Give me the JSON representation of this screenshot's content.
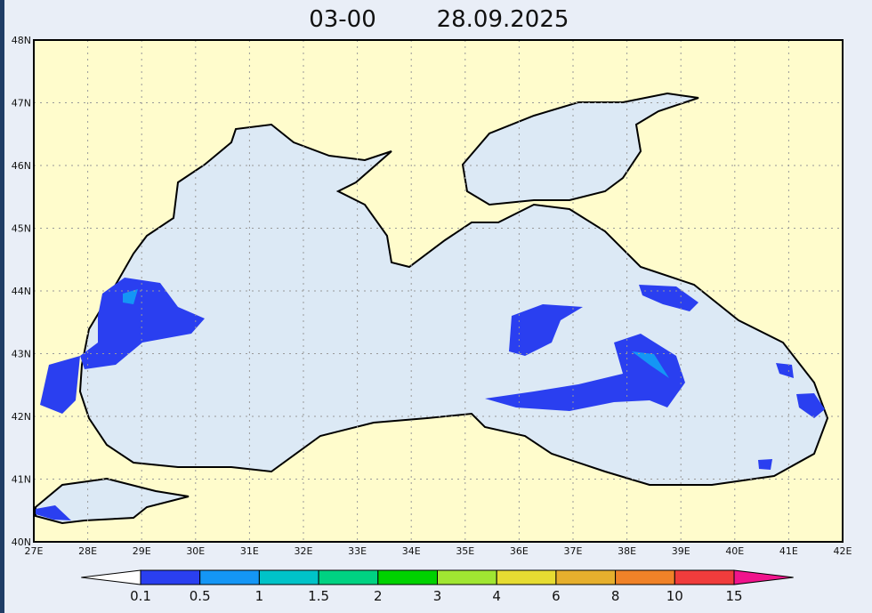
{
  "header": {
    "time": "03-00",
    "date": "28.09.2025"
  },
  "map": {
    "lat_labels": [
      "40N",
      "41N",
      "42N",
      "43N",
      "44N",
      "45N",
      "46N",
      "47N",
      "48N"
    ],
    "lon_labels": [
      "27E",
      "28E",
      "29E",
      "30E",
      "31E",
      "32E",
      "33E",
      "34E",
      "35E",
      "36E",
      "37E",
      "38E",
      "39E",
      "40E",
      "41E",
      "42E"
    ],
    "grid": true
  },
  "legend": {
    "labels": [
      "0.1",
      "0.5",
      "1",
      "1.5",
      "2",
      "3",
      "4",
      "6",
      "8",
      "10",
      "15"
    ],
    "colors": [
      "#ffffff",
      "#2a3ff0",
      "#1496f5",
      "#00c3c8",
      "#00d282",
      "#00d200",
      "#a0e632",
      "#e6dc32",
      "#e6af2d",
      "#f08228",
      "#f03c3c",
      "#f0148c"
    ]
  }
}
